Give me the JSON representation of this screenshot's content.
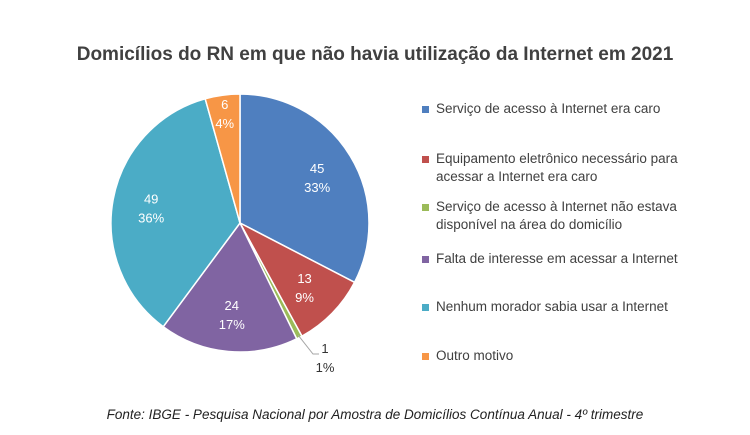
{
  "chart_data": {
    "type": "pie",
    "title": "Domicílios do RN em que não havia utilização da Internet em 2021",
    "slices": [
      {
        "label": "Serviço de acesso à Internet era caro",
        "value": 45,
        "percent": "33%",
        "color": "#4f7fbf"
      },
      {
        "label": "Equipamento eletrônico necessário para acessar a Internet era caro",
        "value": 13,
        "percent": "9%",
        "color": "#c0504d"
      },
      {
        "label": "Serviço de acesso à Internet não estava disponível na área do domicílio",
        "value": 1,
        "percent": "1%",
        "color": "#9bbb59"
      },
      {
        "label": "Falta de interesse em acessar a Internet",
        "value": 24,
        "percent": "17%",
        "color": "#8064a2"
      },
      {
        "label": "Nenhum morador sabia usar a Internet",
        "value": 49,
        "percent": "36%",
        "color": "#4bacc6"
      },
      {
        "label": "Outro motivo",
        "value": 6,
        "percent": "4%",
        "color": "#f79646"
      }
    ],
    "legend_placement": "right"
  },
  "source": "Fonte: IBGE - Pesquisa Nacional por Amostra de Domicílios Contínua Anual - 4º trimestre"
}
